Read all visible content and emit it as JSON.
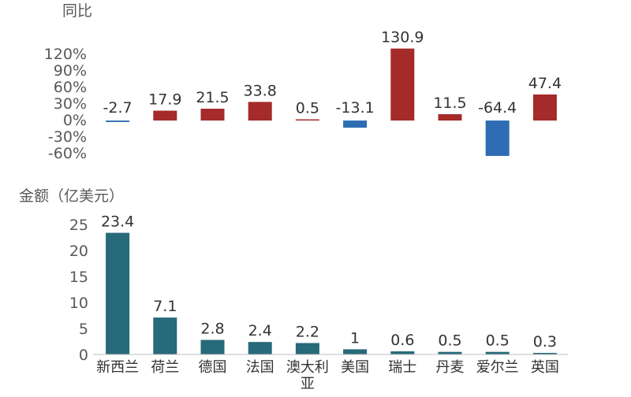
{
  "chart_data": [
    {
      "type": "bar",
      "ylabel": "同比",
      "categories": [
        "新西兰",
        "荷兰",
        "德国",
        "法国",
        "澳大利亚",
        "美国",
        "瑞士",
        "丹麦",
        "爱尔兰",
        "英国"
      ],
      "values": [
        -2.7,
        17.9,
        21.5,
        33.8,
        0.5,
        -13.1,
        130.9,
        11.5,
        -64.4,
        47.4
      ],
      "data_labels": [
        "-2.7",
        "17.9",
        "21.5",
        "33.8",
        "0.5",
        "-13.1",
        "130.9",
        "11.5",
        "-64.4",
        "47.4"
      ],
      "ylim": [
        -60,
        120
      ],
      "yticks": [
        120,
        90,
        60,
        30,
        0,
        -30,
        -60
      ],
      "ytick_labels": [
        "120%",
        "90%",
        "60%",
        "30%",
        "0%",
        "-30%",
        "-60%"
      ],
      "grid": false,
      "colors": {
        "positive": "#A52A2A",
        "negative": "#2E6DB4"
      }
    },
    {
      "type": "bar",
      "ylabel": "金额（亿美元）",
      "categories": [
        "新西兰",
        "荷兰",
        "德国",
        "法国",
        "澳大利亚",
        "美国",
        "瑞士",
        "丹麦",
        "爱尔兰",
        "英国"
      ],
      "values": [
        23.4,
        7.1,
        2.8,
        2.4,
        2.2,
        1,
        0.6,
        0.5,
        0.5,
        0.3
      ],
      "data_labels": [
        "23.4",
        "7.1",
        "2.8",
        "2.4",
        "2.2",
        "1",
        "0.6",
        "0.5",
        "0.5",
        "0.3"
      ],
      "ylim": [
        0,
        25
      ],
      "yticks": [
        25,
        20,
        15,
        10,
        5,
        0
      ],
      "ytick_labels": [
        "25",
        "20",
        "15",
        "10",
        "5",
        "0"
      ],
      "grid": false,
      "colors": {
        "bar": "#276A7A"
      }
    }
  ]
}
